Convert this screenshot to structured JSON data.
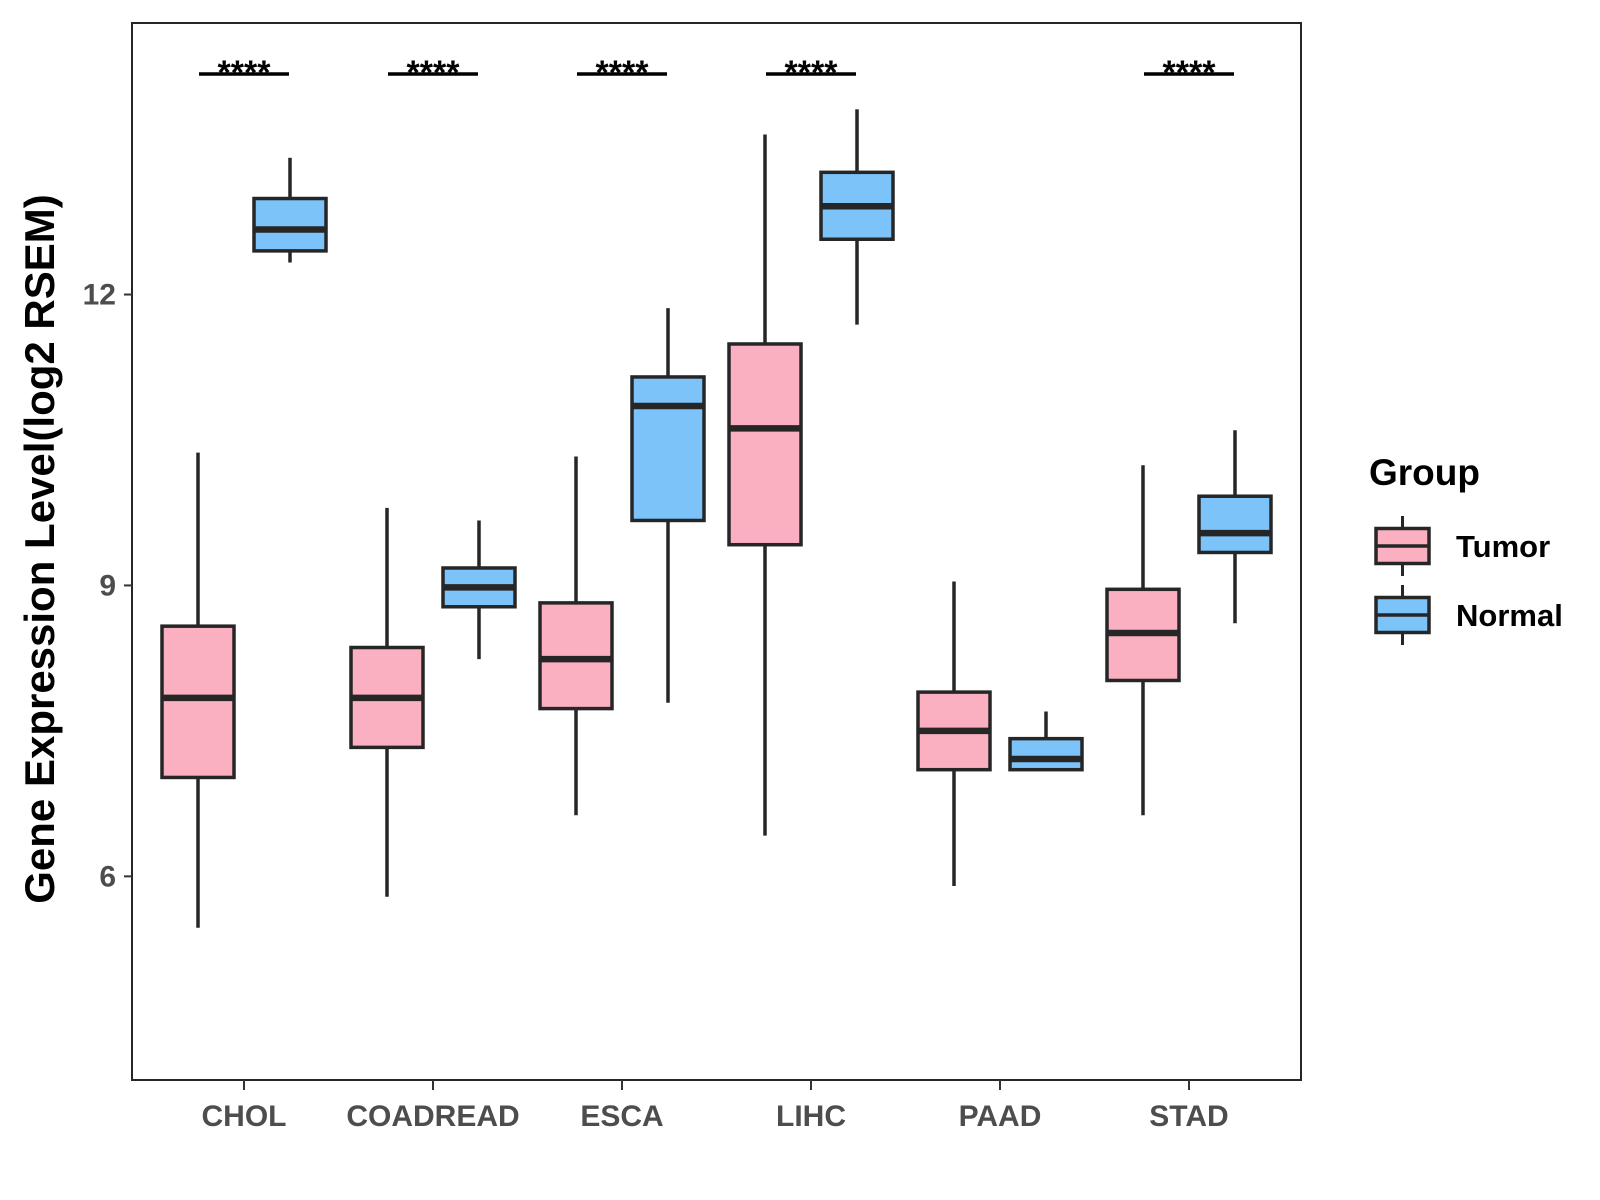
{
  "chart_data": {
    "type": "boxplot",
    "title": "",
    "xlabel": "",
    "ylabel": "Gene Expression Level(log2 RSEM)",
    "ylim": [
      3.9,
      14.8
    ],
    "yticks": [
      6,
      9,
      12
    ],
    "grid": false,
    "categories": [
      "CHOL",
      "COADREAD",
      "ESCA",
      "LIHC",
      "PAAD",
      "STAD"
    ],
    "legend": {
      "title": "Group",
      "position": "right",
      "entries": [
        {
          "name": "Tumor",
          "color": "#FBB0C2"
        },
        {
          "name": "Normal",
          "color": "#7BC3F9"
        }
      ]
    },
    "series": [
      {
        "name": "Tumor",
        "color": "#FBB0C2",
        "boxes": [
          {
            "min": 5.47,
            "q1": 7.02,
            "median": 7.84,
            "q3": 8.58,
            "max": 10.37
          },
          {
            "min": 5.79,
            "q1": 7.33,
            "median": 7.84,
            "q3": 8.36,
            "max": 9.8
          },
          {
            "min": 6.63,
            "q1": 7.73,
            "median": 8.24,
            "q3": 8.82,
            "max": 10.33
          },
          {
            "min": 6.42,
            "q1": 9.42,
            "median": 10.62,
            "q3": 11.49,
            "max": 13.65
          },
          {
            "min": 5.9,
            "q1": 7.1,
            "median": 7.5,
            "q3": 7.9,
            "max": 9.04
          },
          {
            "min": 6.63,
            "q1": 8.02,
            "median": 8.51,
            "q3": 8.96,
            "max": 10.24
          }
        ]
      },
      {
        "name": "Normal",
        "color": "#7BC3F9",
        "boxes": [
          {
            "min": 12.33,
            "q1": 12.45,
            "median": 12.67,
            "q3": 12.99,
            "max": 13.41
          },
          {
            "min": 8.24,
            "q1": 8.78,
            "median": 8.98,
            "q3": 9.18,
            "max": 9.67
          },
          {
            "min": 7.79,
            "q1": 9.67,
            "median": 10.85,
            "q3": 11.15,
            "max": 11.86
          },
          {
            "min": 11.69,
            "q1": 12.57,
            "median": 12.91,
            "q3": 13.26,
            "max": 13.91
          },
          {
            "min": 7.1,
            "q1": 7.1,
            "median": 7.21,
            "q3": 7.42,
            "max": 7.7
          },
          {
            "min": 8.61,
            "q1": 9.34,
            "median": 9.54,
            "q3": 9.92,
            "max": 10.6
          }
        ]
      }
    ],
    "annotations": [
      {
        "category": "CHOL",
        "text": "****"
      },
      {
        "category": "COADREAD",
        "text": "****"
      },
      {
        "category": "ESCA",
        "text": "****"
      },
      {
        "category": "LIHC",
        "text": "****"
      },
      {
        "category": "STAD",
        "text": "****"
      }
    ]
  }
}
